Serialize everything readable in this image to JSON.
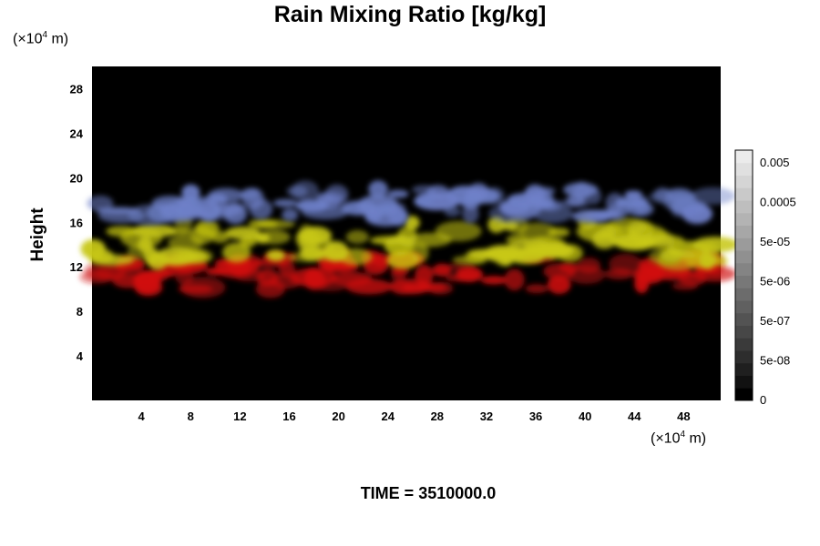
{
  "title": "Rain Mixing Ratio [kg/kg]",
  "y_unit": {
    "prefix": "(×10",
    "exp": "4",
    "suffix": " m)"
  },
  "x_unit": {
    "prefix": "(×10",
    "exp": "4",
    "suffix": " m)"
  },
  "ylabel": "Height",
  "time_label": "TIME = 3510000.0",
  "chart_data": {
    "type": "heatmap",
    "title": "Rain Mixing Ratio [kg/kg]",
    "xlabel": "",
    "ylabel": "Height",
    "x_ticks": [
      4,
      8,
      12,
      16,
      20,
      24,
      28,
      32,
      36,
      40,
      44,
      48
    ],
    "y_ticks": [
      4,
      8,
      12,
      16,
      20,
      24,
      28
    ],
    "xlim": [
      0,
      51
    ],
    "ylim": [
      0,
      30
    ],
    "background": "#000000",
    "colorbar": {
      "labels": [
        "0.005",
        "0.0005",
        "5e-05",
        "5e-06",
        "5e-07",
        "5e-08",
        "0"
      ],
      "levels": 20
    },
    "layers": [
      {
        "name": "blue",
        "color": "#6e80c8",
        "y_range": [
          16.5,
          19
        ],
        "x_range": [
          0.5,
          51
        ]
      },
      {
        "name": "yellow",
        "color": "#c8c814",
        "y_range": [
          12.5,
          16
        ],
        "x_range": [
          0,
          51
        ]
      },
      {
        "name": "red",
        "color": "#d01010",
        "y_range": [
          10,
          13
        ],
        "x_range": [
          0,
          51
        ]
      }
    ]
  }
}
